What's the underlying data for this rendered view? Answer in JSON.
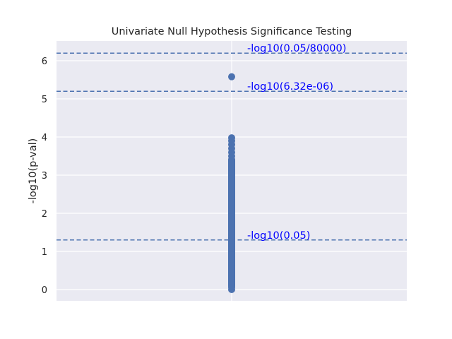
{
  "chart_data": {
    "type": "scatter",
    "title": "Univariate Null Hypothesis Significance Testing",
    "xlabel": "",
    "ylabel": "-log10(p-val)",
    "ylim": [
      -0.3,
      6.5
    ],
    "yticks": [
      "0",
      "1",
      "2",
      "3",
      "4",
      "5",
      "6"
    ],
    "grid": true,
    "points": {
      "x_category": 0,
      "dense_range": [
        0.0,
        3.5
      ],
      "y": [
        0.0,
        0.05,
        0.1,
        0.2,
        0.3,
        0.4,
        0.5,
        0.6,
        0.7,
        0.8,
        0.9,
        1.0,
        1.1,
        1.2,
        1.3,
        1.4,
        1.5,
        1.6,
        1.7,
        1.8,
        1.9,
        2.0,
        2.1,
        2.2,
        2.3,
        2.4,
        2.5,
        2.6,
        2.7,
        2.8,
        2.9,
        3.0,
        3.1,
        3.2,
        3.3,
        3.4,
        3.5,
        3.6,
        3.7,
        3.8,
        3.9,
        3.98,
        5.58
      ]
    },
    "thresholds": [
      {
        "label": "-log10(0.05/80000)",
        "value": 6.2
      },
      {
        "label": "-log10(6.32e-06)",
        "value": 5.2
      },
      {
        "label": "-log10(0.05)",
        "value": 1.3
      }
    ],
    "colors": {
      "background": "#eaeaf2",
      "grid": "#ffffff",
      "points": "#4c72b0",
      "threshold_line": "#4c72b0",
      "annotation": "#0000ff"
    }
  }
}
